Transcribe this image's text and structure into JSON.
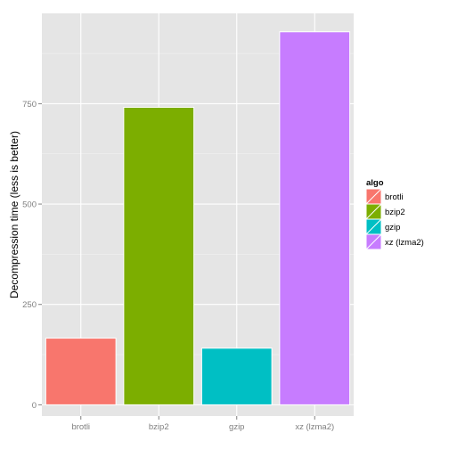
{
  "chart_data": {
    "type": "bar",
    "categories": [
      "brotli",
      "bzip2",
      "gzip",
      "xz (lzma2)"
    ],
    "values": [
      166,
      741,
      141,
      929
    ],
    "colors": [
      "#F8766D",
      "#7CAE00",
      "#00BFC4",
      "#C77CFF"
    ],
    "xlabel": "",
    "ylabel": "Decompression time (less is better)",
    "ylim": [
      -28,
      975
    ],
    "yticks": [
      0,
      250,
      500,
      750
    ],
    "ytick_labels": [
      "0",
      "250",
      "500",
      "750"
    ],
    "grid": true,
    "panel_background": "#E5E5E5",
    "legend": {
      "title": "algo",
      "position": "right",
      "entries": [
        "brotli",
        "bzip2",
        "gzip",
        "xz (lzma2)"
      ]
    }
  }
}
